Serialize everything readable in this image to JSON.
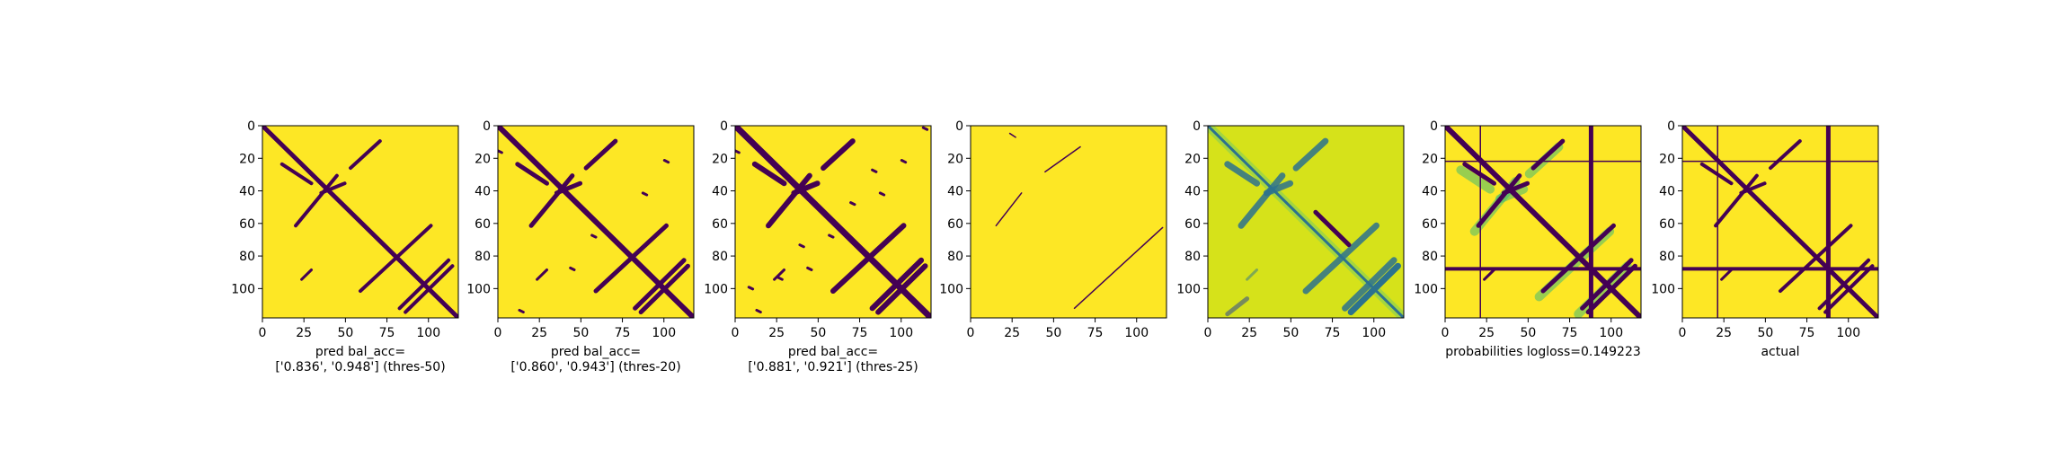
{
  "chart_data": [
    {
      "type": "heatmap",
      "xlabel": [
        "pred bal_acc=",
        "['0.836', '0.948'] (thres-50)"
      ],
      "xlim": [
        0,
        118
      ],
      "ylim": [
        118,
        0
      ],
      "xticks": [
        0,
        25,
        50,
        75,
        100
      ],
      "yticks": [
        0,
        20,
        40,
        60,
        80,
        100
      ]
    },
    {
      "type": "heatmap",
      "xlabel": [
        "pred bal_acc=",
        "['0.860', '0.943'] (thres-20)"
      ],
      "xlim": [
        0,
        118
      ],
      "ylim": [
        118,
        0
      ],
      "xticks": [
        0,
        25,
        50,
        75,
        100
      ],
      "yticks": [
        0,
        20,
        40,
        60,
        80,
        100
      ]
    },
    {
      "type": "heatmap",
      "xlabel": [
        "pred bal_acc=",
        "['0.881', '0.921'] (thres-25)"
      ],
      "xlim": [
        0,
        118
      ],
      "ylim": [
        118,
        0
      ],
      "xticks": [
        0,
        25,
        50,
        75,
        100
      ],
      "yticks": [
        0,
        20,
        40,
        60,
        80,
        100
      ]
    },
    {
      "type": "heatmap",
      "xlim": [
        0,
        118
      ],
      "ylim": [
        118,
        0
      ],
      "xticks": [
        0,
        25,
        50,
        75,
        100
      ],
      "yticks": [
        0,
        20,
        40,
        60,
        80,
        100
      ]
    },
    {
      "type": "heatmap",
      "xlim": [
        0,
        118
      ],
      "ylim": [
        118,
        0
      ],
      "xticks": [
        0,
        25,
        50,
        75,
        100
      ],
      "yticks": [
        0,
        20,
        40,
        60,
        80,
        100
      ]
    },
    {
      "type": "heatmap",
      "xlabel": [
        "probabilities logloss=0.149223"
      ],
      "xlim": [
        0,
        118
      ],
      "ylim": [
        118,
        0
      ],
      "xticks": [
        0,
        25,
        50,
        75,
        100
      ],
      "yticks": [
        0,
        20,
        40,
        60,
        80,
        100
      ]
    },
    {
      "type": "heatmap",
      "xlabel": [
        "actual"
      ],
      "xlim": [
        0,
        118
      ],
      "ylim": [
        118,
        0
      ],
      "xticks": [
        0,
        25,
        50,
        75,
        100
      ],
      "yticks": [
        0,
        20,
        40,
        60,
        80,
        100
      ]
    }
  ]
}
